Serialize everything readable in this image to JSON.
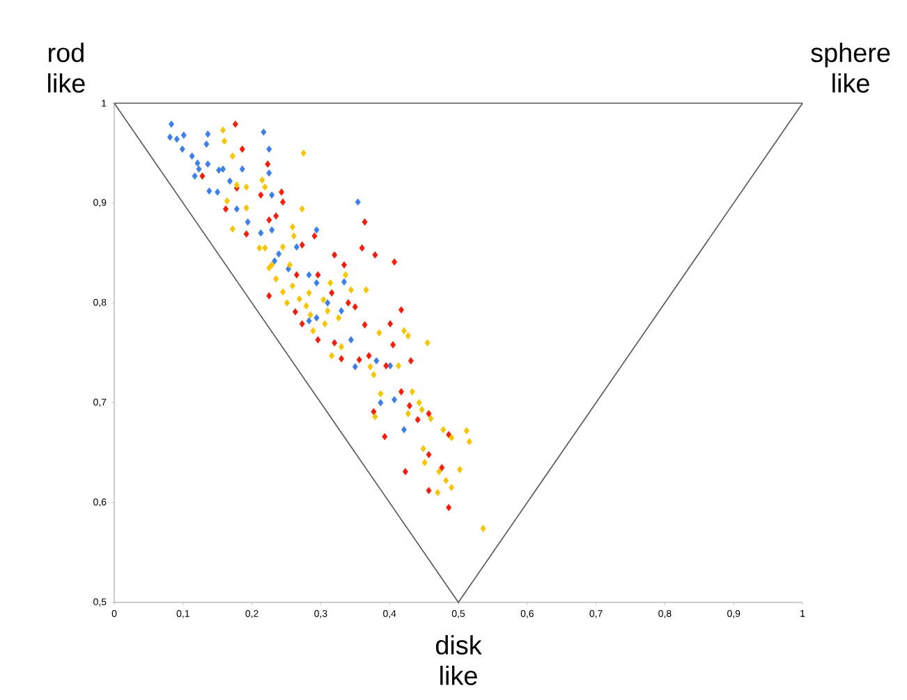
{
  "chart_data": {
    "type": "scatter",
    "ref_lines": [
      {
        "axis": "y",
        "value": 1,
        "color": "#555555"
      }
    ],
    "xlim": [
      0,
      1
    ],
    "ylim": [
      0.5,
      1
    ],
    "xticks": [
      0,
      {
        "value": 0.1,
        "label": "0,1"
      },
      {
        "value": 0.2,
        "label": "0,2"
      },
      {
        "value": 0.3,
        "label": "0,3"
      },
      {
        "value": 0.4,
        "label": "0,4"
      },
      {
        "value": 0.5,
        "label": "0,5"
      },
      {
        "value": 0.6,
        "label": "0,6"
      },
      {
        "value": 0.7,
        "label": "0,7"
      },
      {
        "value": 0.8,
        "label": "0,8"
      },
      {
        "value": 0.9,
        "label": "0,9"
      },
      1
    ],
    "yticks": [
      {
        "value": 0.5,
        "label": "0,5"
      },
      {
        "value": 0.6,
        "label": "0,6"
      },
      {
        "value": 0.7,
        "label": "0,7"
      },
      {
        "value": 0.8,
        "label": "0,8"
      },
      {
        "value": 0.9,
        "label": "0,9"
      },
      1
    ],
    "annotations": [
      {
        "text": "rod like",
        "x": 0,
        "y": 1
      },
      {
        "text": "sphere like",
        "x": 1,
        "y": 1
      },
      {
        "text": "disk like",
        "x": 0.5,
        "y": 0.5
      }
    ],
    "series": [
      {
        "type": "line",
        "marker": "none",
        "color": "#555555",
        "x": [
          0,
          0.5,
          1
        ],
        "values": [
          1,
          0.5,
          1
        ]
      },
      {
        "marker": "diamond",
        "color": "#3d7fe8",
        "x": [
          0.083,
          0.081,
          0.091,
          0.101,
          0.136,
          0.134,
          0.099,
          0.113,
          0.121,
          0.123,
          0.117,
          0.136,
          0.152,
          0.158,
          0.186,
          0.217,
          0.225,
          0.225,
          0.168,
          0.138,
          0.15,
          0.178,
          0.194,
          0.213,
          0.229,
          0.229,
          0.354,
          0.239,
          0.233,
          0.253,
          0.294,
          0.265,
          0.283,
          0.294,
          0.334,
          0.31,
          0.33,
          0.294,
          0.283,
          0.344,
          0.381,
          0.401,
          0.35,
          0.407,
          0.387,
          0.421
        ],
        "values": [
          0.979,
          0.966,
          0.964,
          0.968,
          0.969,
          0.959,
          0.954,
          0.947,
          0.94,
          0.934,
          0.927,
          0.939,
          0.933,
          0.934,
          0.934,
          0.971,
          0.954,
          0.93,
          0.922,
          0.912,
          0.911,
          0.894,
          0.881,
          0.87,
          0.873,
          0.908,
          0.901,
          0.849,
          0.842,
          0.834,
          0.873,
          0.856,
          0.828,
          0.82,
          0.821,
          0.8,
          0.792,
          0.785,
          0.782,
          0.763,
          0.742,
          0.737,
          0.736,
          0.703,
          0.7,
          0.673
        ]
      },
      {
        "marker": "diamond",
        "color": "#f01e0a",
        "x": [
          0.176,
          0.186,
          0.223,
          0.128,
          0.178,
          0.213,
          0.243,
          0.245,
          0.162,
          0.192,
          0.225,
          0.235,
          0.364,
          0.291,
          0.273,
          0.36,
          0.379,
          0.32,
          0.334,
          0.296,
          0.265,
          0.225,
          0.316,
          0.34,
          0.407,
          0.35,
          0.263,
          0.273,
          0.296,
          0.32,
          0.364,
          0.401,
          0.417,
          0.405,
          0.431,
          0.356,
          0.33,
          0.37,
          0.395,
          0.417,
          0.429,
          0.441,
          0.457,
          0.377,
          0.393,
          0.486,
          0.457,
          0.476,
          0.423,
          0.457,
          0.486
        ],
        "values": [
          0.979,
          0.954,
          0.939,
          0.927,
          0.915,
          0.908,
          0.911,
          0.901,
          0.894,
          0.869,
          0.883,
          0.887,
          0.881,
          0.867,
          0.858,
          0.855,
          0.848,
          0.848,
          0.838,
          0.828,
          0.828,
          0.807,
          0.81,
          0.8,
          0.841,
          0.796,
          0.791,
          0.779,
          0.763,
          0.76,
          0.778,
          0.779,
          0.793,
          0.758,
          0.742,
          0.743,
          0.744,
          0.747,
          0.737,
          0.711,
          0.697,
          0.683,
          0.689,
          0.691,
          0.666,
          0.668,
          0.648,
          0.635,
          0.631,
          0.612,
          0.595
        ]
      },
      {
        "marker": "diamond",
        "color": "#f7c400",
        "x": [
          0.158,
          0.16,
          0.172,
          0.275,
          0.215,
          0.219,
          0.192,
          0.178,
          0.273,
          0.192,
          0.164,
          0.172,
          0.259,
          0.261,
          0.219,
          0.245,
          0.225,
          0.255,
          0.336,
          0.314,
          0.259,
          0.344,
          0.366,
          0.245,
          0.269,
          0.251,
          0.211,
          0.229,
          0.235,
          0.283,
          0.304,
          0.279,
          0.285,
          0.31,
          0.326,
          0.306,
          0.289,
          0.33,
          0.316,
          0.372,
          0.385,
          0.421,
          0.427,
          0.455,
          0.413,
          0.377,
          0.387,
          0.433,
          0.443,
          0.447,
          0.427,
          0.46,
          0.379,
          0.478,
          0.49,
          0.512,
          0.516,
          0.449,
          0.451,
          0.472,
          0.502,
          0.482,
          0.49,
          0.47,
          0.536
        ],
        "values": [
          0.973,
          0.962,
          0.947,
          0.95,
          0.923,
          0.916,
          0.916,
          0.918,
          0.894,
          0.895,
          0.902,
          0.874,
          0.876,
          0.867,
          0.855,
          0.856,
          0.835,
          0.838,
          0.828,
          0.82,
          0.817,
          0.813,
          0.813,
          0.811,
          0.804,
          0.8,
          0.855,
          0.838,
          0.824,
          0.81,
          0.803,
          0.797,
          0.788,
          0.792,
          0.785,
          0.779,
          0.772,
          0.756,
          0.747,
          0.736,
          0.77,
          0.772,
          0.767,
          0.76,
          0.737,
          0.728,
          0.709,
          0.711,
          0.7,
          0.693,
          0.689,
          0.684,
          0.686,
          0.673,
          0.665,
          0.672,
          0.661,
          0.654,
          0.64,
          0.631,
          0.633,
          0.622,
          0.615,
          0.61,
          0.574
        ]
      }
    ]
  }
}
